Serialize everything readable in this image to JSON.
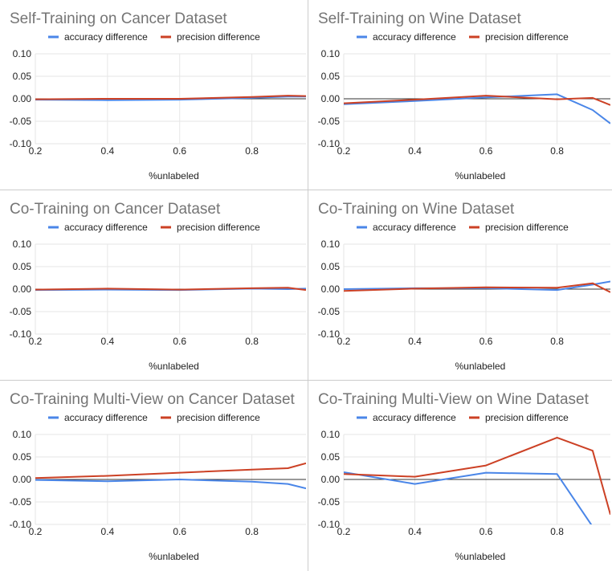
{
  "colors": {
    "accuracy": "#4a86e8",
    "precision": "#cc4125",
    "grid": "#e6e6e6",
    "zero": "#333333",
    "text": "#222222",
    "title": "#757575"
  },
  "chart_data": [
    {
      "type": "line",
      "title": "Self-Training on Cancer Dataset",
      "xlabel": "%unlabeled",
      "ylabel": "",
      "xlim": [
        0.2,
        0.95
      ],
      "ylim": [
        -0.1,
        0.1
      ],
      "xticks": [
        "0.2",
        "0.4",
        "0.6",
        "0.8"
      ],
      "yticks": [
        "0.10",
        "0.05",
        "0.00",
        "-0.05",
        "-0.10"
      ],
      "legend": "top",
      "grid": true,
      "series": [
        {
          "name": "accuracy difference",
          "x": [
            0.2,
            0.4,
            0.6,
            0.8,
            0.9,
            0.95
          ],
          "y": [
            -0.002,
            -0.003,
            -0.002,
            0.002,
            0.005,
            0.005
          ]
        },
        {
          "name": "precision difference",
          "x": [
            0.2,
            0.4,
            0.6,
            0.8,
            0.9,
            0.95
          ],
          "y": [
            -0.001,
            0.0,
            0.0,
            0.004,
            0.007,
            0.006
          ]
        }
      ]
    },
    {
      "type": "line",
      "title": "Self-Training on Wine Dataset",
      "xlabel": "%unlabeled",
      "ylabel": "",
      "xlim": [
        0.2,
        0.95
      ],
      "ylim": [
        -0.1,
        0.1
      ],
      "xticks": [
        "0.2",
        "0.4",
        "0.6",
        "0.8"
      ],
      "yticks": [
        "0.10",
        "0.05",
        "0.00",
        "-0.05",
        "-0.10"
      ],
      "legend": "top",
      "grid": true,
      "series": [
        {
          "name": "accuracy difference",
          "x": [
            0.2,
            0.4,
            0.6,
            0.8,
            0.9,
            0.95
          ],
          "y": [
            -0.012,
            -0.005,
            0.003,
            0.01,
            -0.025,
            -0.055
          ]
        },
        {
          "name": "precision difference",
          "x": [
            0.2,
            0.4,
            0.6,
            0.8,
            0.9,
            0.95
          ],
          "y": [
            -0.01,
            -0.002,
            0.007,
            -0.001,
            0.002,
            -0.014
          ]
        }
      ]
    },
    {
      "type": "line",
      "title": "Co-Training on Cancer Dataset",
      "xlabel": "%unlabeled",
      "ylabel": "",
      "xlim": [
        0.2,
        0.95
      ],
      "ylim": [
        -0.1,
        0.1
      ],
      "xticks": [
        "0.2",
        "0.4",
        "0.6",
        "0.8"
      ],
      "yticks": [
        "0.10",
        "0.05",
        "0.00",
        "-0.05",
        "-0.10"
      ],
      "legend": "top",
      "grid": true,
      "series": [
        {
          "name": "accuracy difference",
          "x": [
            0.2,
            0.4,
            0.6,
            0.8,
            0.9,
            0.95
          ],
          "y": [
            -0.002,
            -0.001,
            -0.002,
            0.001,
            0.0,
            0.001
          ]
        },
        {
          "name": "precision difference",
          "x": [
            0.2,
            0.4,
            0.6,
            0.8,
            0.9,
            0.95
          ],
          "y": [
            -0.001,
            0.001,
            -0.001,
            0.002,
            0.003,
            -0.002
          ]
        }
      ]
    },
    {
      "type": "line",
      "title": "Co-Training on Wine Dataset",
      "xlabel": "%unlabeled",
      "ylabel": "",
      "xlim": [
        0.2,
        0.95
      ],
      "ylim": [
        -0.1,
        0.1
      ],
      "xticks": [
        "0.2",
        "0.4",
        "0.6",
        "0.8"
      ],
      "yticks": [
        "0.10",
        "0.05",
        "0.00",
        "-0.05",
        "-0.10"
      ],
      "legend": "top",
      "grid": true,
      "series": [
        {
          "name": "accuracy difference",
          "x": [
            0.2,
            0.4,
            0.6,
            0.8,
            0.9,
            0.95
          ],
          "y": [
            0.0,
            0.002,
            0.002,
            -0.002,
            0.01,
            0.017
          ]
        },
        {
          "name": "precision difference",
          "x": [
            0.2,
            0.4,
            0.6,
            0.8,
            0.9,
            0.95
          ],
          "y": [
            -0.004,
            0.001,
            0.004,
            0.003,
            0.013,
            -0.007
          ]
        }
      ]
    },
    {
      "type": "line",
      "title": "Co-Training Multi-View on Cancer Dataset",
      "xlabel": "%unlabeled",
      "ylabel": "",
      "xlim": [
        0.2,
        0.95
      ],
      "ylim": [
        -0.1,
        0.1
      ],
      "xticks": [
        "0.2",
        "0.4",
        "0.6",
        "0.8"
      ],
      "yticks": [
        "0.10",
        "0.05",
        "0.00",
        "-0.05",
        "-0.10"
      ],
      "legend": "top",
      "grid": true,
      "series": [
        {
          "name": "accuracy difference",
          "x": [
            0.2,
            0.4,
            0.6,
            0.8,
            0.9,
            0.95
          ],
          "y": [
            -0.001,
            -0.004,
            0.0,
            -0.005,
            -0.01,
            -0.02
          ]
        },
        {
          "name": "precision difference",
          "x": [
            0.2,
            0.4,
            0.6,
            0.8,
            0.9,
            0.95
          ],
          "y": [
            0.003,
            0.008,
            0.015,
            0.022,
            0.025,
            0.036
          ]
        }
      ]
    },
    {
      "type": "line",
      "title": "Co-Training Multi-View on Wine Dataset",
      "xlabel": "%unlabeled",
      "ylabel": "",
      "xlim": [
        0.2,
        0.95
      ],
      "ylim": [
        -0.1,
        0.1
      ],
      "xticks": [
        "0.2",
        "0.4",
        "0.6",
        "0.8"
      ],
      "yticks": [
        "0.10",
        "0.05",
        "0.00",
        "-0.05",
        "-0.10"
      ],
      "legend": "top",
      "grid": true,
      "series": [
        {
          "name": "accuracy difference",
          "x": [
            0.2,
            0.4,
            0.6,
            0.8,
            0.9,
            0.95
          ],
          "y": [
            0.016,
            -0.01,
            0.015,
            0.012,
            -0.105,
            -0.14
          ]
        },
        {
          "name": "precision difference",
          "x": [
            0.2,
            0.4,
            0.6,
            0.8,
            0.9,
            0.95
          ],
          "y": [
            0.012,
            0.006,
            0.031,
            0.093,
            0.064,
            -0.078
          ]
        }
      ]
    }
  ]
}
